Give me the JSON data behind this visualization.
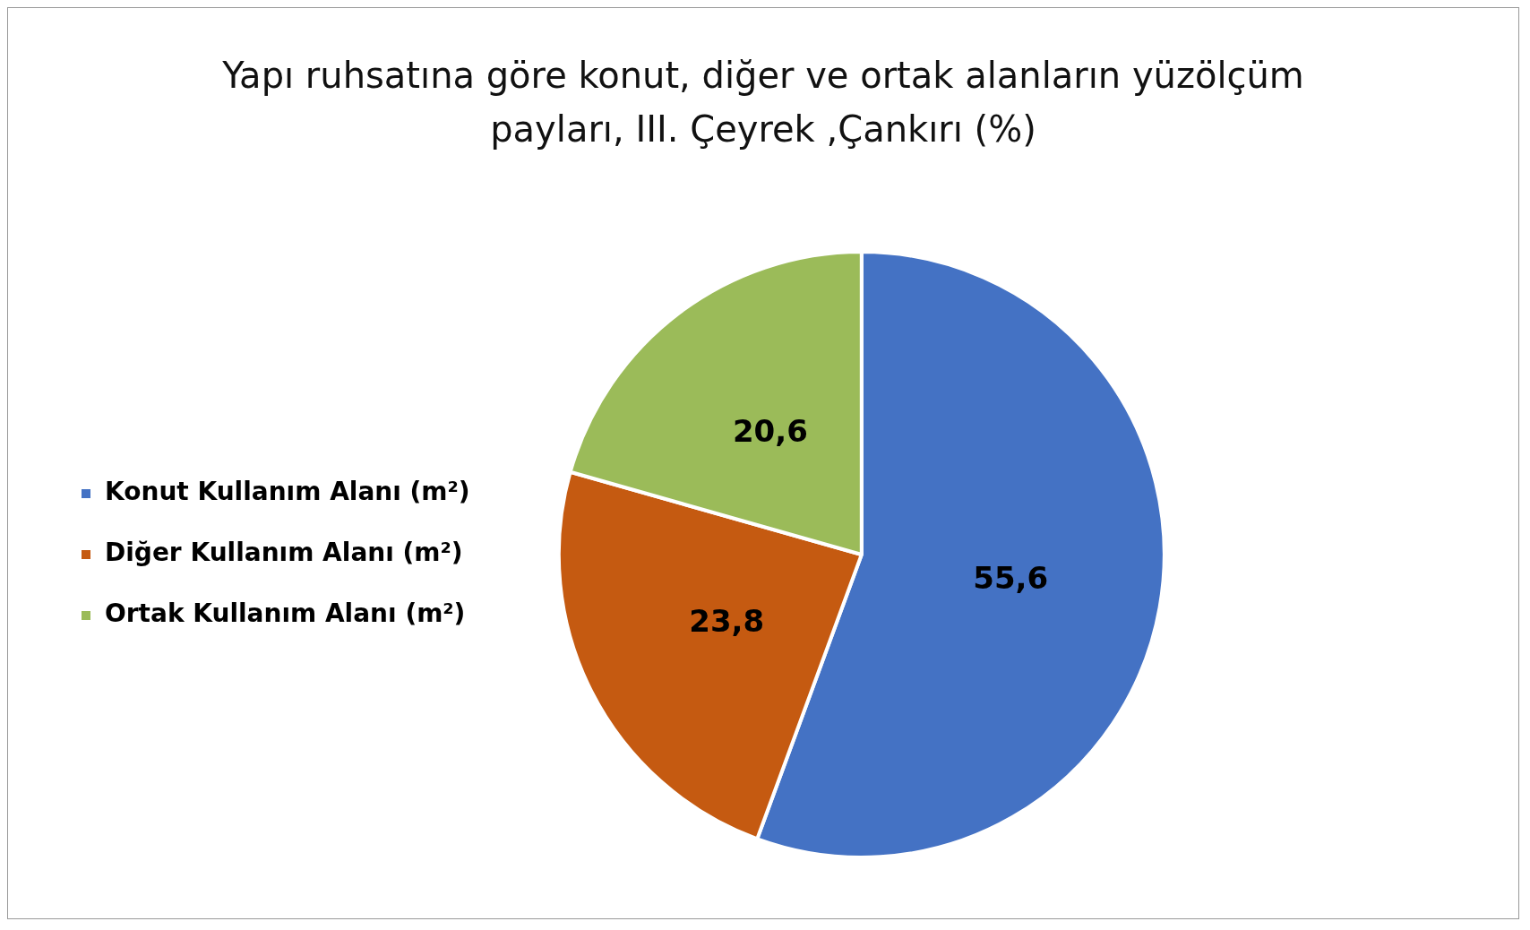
{
  "chart_data": {
    "type": "pie",
    "title": "Yapı ruhsatına göre konut, diğer ve ortak alanların yüzölçüm payları, III. Çeyrek ,Çankırı (%)",
    "categories": [
      "Konut Kullanım Alanı (m²)",
      "Diğer Kullanım Alanı (m²)",
      "Ortak Kullanım Alanı (m²)"
    ],
    "values": [
      55.6,
      23.8,
      20.6
    ],
    "colors": [
      "#4472c4",
      "#c55a11",
      "#9bbb59"
    ],
    "value_labels": [
      "55,6",
      "23,8",
      "20,6"
    ],
    "legend": "left"
  }
}
